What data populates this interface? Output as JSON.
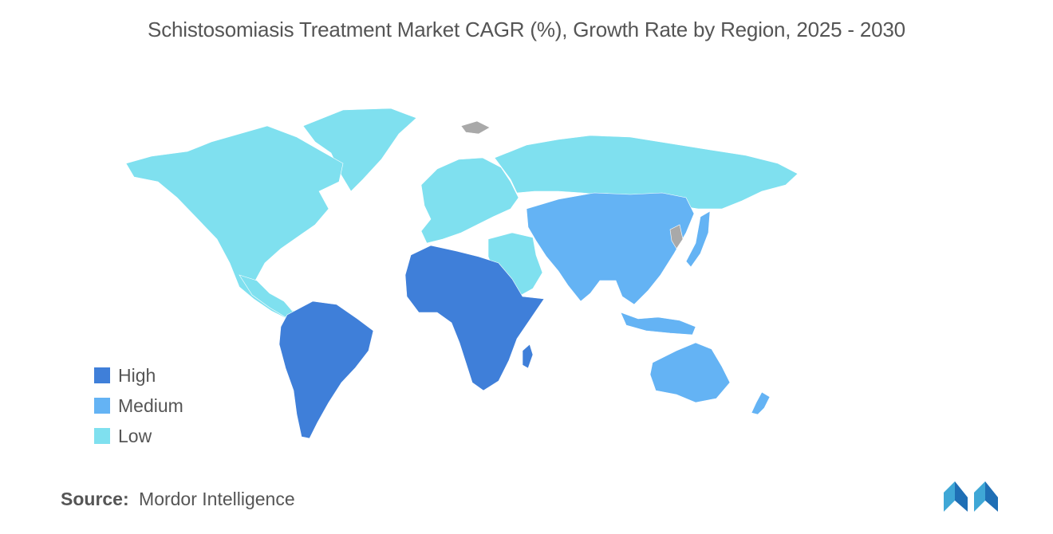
{
  "title": "Schistosomiasis Treatment Market CAGR (%), Growth Rate by Region, 2025 - 2030",
  "legend": [
    {
      "label": "High",
      "color": "#3f7fd9"
    },
    {
      "label": "Medium",
      "color": "#64b3f4"
    },
    {
      "label": "Low",
      "color": "#7fe0ef"
    }
  ],
  "regions": {
    "north_america": "Low",
    "europe": "Low",
    "russia": "Low",
    "middle_east": "Low",
    "latin_america": "High",
    "africa": "High",
    "asia_pacific": "Medium",
    "oceania": "Medium"
  },
  "colors": {
    "no_data": "#a9a9a9"
  },
  "source": {
    "label": "Source:",
    "text": "Mordor Intelligence"
  },
  "logo_icon": "mordor-intelligence-logo"
}
